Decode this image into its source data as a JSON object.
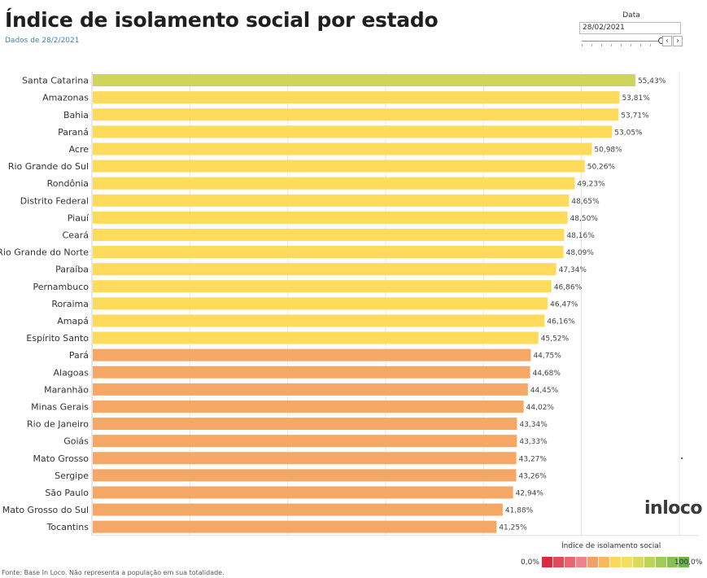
{
  "header": {
    "title": "Índice de isolamento social por estado",
    "subtitle": "Dados de 28/2/2021"
  },
  "date_filter": {
    "label": "Data",
    "value": "28/02/2021",
    "prev_icon": "‹",
    "next_icon": "›"
  },
  "chart_data": {
    "type": "bar",
    "orientation": "horizontal",
    "title": "Índice de isolamento social por estado",
    "categories": [
      "Santa Catarina",
      "Amazonas",
      "Bahia",
      "Paraná",
      "Acre",
      "Rio Grande do Sul",
      "Rondônia",
      "Distrito Federal",
      "Piauí",
      "Ceará",
      "Rio Grande do Norte",
      "Paraíba",
      "Pernambuco",
      "Roraima",
      "Amapá",
      "Espírito Santo",
      "Pará",
      "Alagoas",
      "Maranhão",
      "Minas Gerais",
      "Rio de Janeiro",
      "Goiás",
      "Mato Grosso",
      "Sergipe",
      "São Paulo",
      "Mato Grosso do Sul",
      "Tocantins"
    ],
    "values": [
      55.43,
      53.81,
      53.71,
      53.05,
      50.98,
      50.26,
      49.23,
      48.65,
      48.5,
      48.16,
      48.09,
      47.34,
      46.86,
      46.47,
      46.16,
      45.52,
      44.75,
      44.68,
      44.45,
      44.02,
      43.34,
      43.33,
      43.27,
      43.26,
      42.94,
      41.88,
      41.25
    ],
    "labels": [
      "55,43%",
      "53,81%",
      "53,71%",
      "53,05%",
      "50,98%",
      "50,26%",
      "49,23%",
      "48,65%",
      "48,50%",
      "48,16%",
      "48,09%",
      "47,34%",
      "46,86%",
      "46,47%",
      "46,16%",
      "45,52%",
      "44,75%",
      "44,68%",
      "44,45%",
      "44,02%",
      "43,34%",
      "43,33%",
      "43,27%",
      "43,26%",
      "42,94%",
      "41,88%",
      "41,25%"
    ],
    "bar_colors": [
      "#cfd45a",
      "#fedb5b",
      "#fedb5b",
      "#fedb5b",
      "#fedb5b",
      "#fedb5b",
      "#fedb5b",
      "#fedb5b",
      "#fedb5b",
      "#fedb5b",
      "#fedb5b",
      "#fedb5b",
      "#fedb5b",
      "#fedb5b",
      "#fedb5b",
      "#fedb5b",
      "#f5a866",
      "#f5a866",
      "#f5a866",
      "#f5a866",
      "#f5a866",
      "#f5a866",
      "#f5a866",
      "#f5a866",
      "#f5a866",
      "#f5a866",
      "#f5a866"
    ],
    "xlim": [
      0,
      62
    ],
    "grid_values": [
      10,
      20,
      30,
      40,
      50,
      60
    ],
    "grid": true,
    "xlabel": "",
    "ylabel": ""
  },
  "legend": {
    "title": "Índice de isolamento social",
    "min_label": "0,0%",
    "max_label": "100,0%",
    "colors": [
      "#d92b3d",
      "#e04a5a",
      "#e6666f",
      "#ec8589",
      "#f2a06a",
      "#f7b860",
      "#fdd85c",
      "#f2df5c",
      "#d9db5a",
      "#bdd45a",
      "#a0cb57",
      "#84c152",
      "#6ab44a"
    ]
  },
  "branding": {
    "logo": "inloco"
  },
  "footer": {
    "source": "Fonte: Base In Loco. Não representa a população em sua totalidade."
  }
}
